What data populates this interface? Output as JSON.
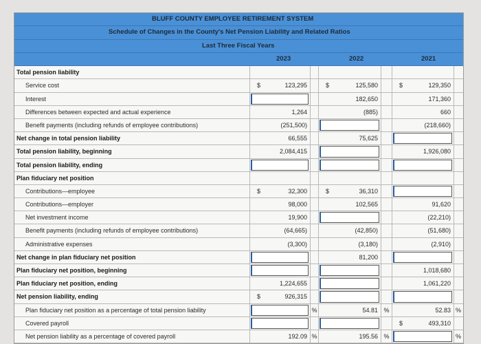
{
  "header": {
    "title": "BLUFF COUNTY EMPLOYEE RETIREMENT SYSTEM",
    "subtitle": "Schedule of Changes in the County's Net Pension Liability and Related Ratios",
    "period": "Last Three Fiscal Years",
    "years": [
      "2023",
      "2022",
      "2021"
    ]
  },
  "colors": {
    "header_blue": "#4a90d6"
  },
  "rows": [
    {
      "label": "Total pension liability",
      "bold": true,
      "section": true
    },
    {
      "label": "Service cost",
      "cells": [
        {
          "value": "123,295",
          "dollar": true
        },
        {
          "value": "125,580",
          "dollar": true
        },
        {
          "value": "129,350",
          "dollar": true
        }
      ]
    },
    {
      "label": "Interest",
      "cells": [
        {
          "input": true
        },
        {
          "value": "182,650"
        },
        {
          "value": "171,360"
        }
      ]
    },
    {
      "label": "Differences between expected and actual experience",
      "cells": [
        {
          "value": "1,264"
        },
        {
          "value": "(885)"
        },
        {
          "value": "660"
        }
      ]
    },
    {
      "label": "Benefit payments (including refunds of employee contributions)",
      "cells": [
        {
          "value": "(251,500)"
        },
        {
          "input": true
        },
        {
          "value": "(218,660)"
        }
      ]
    },
    {
      "label": "Net change in total pension liability",
      "bold": true,
      "cells": [
        {
          "value": "66,555"
        },
        {
          "value": "75,625"
        },
        {
          "input": true
        }
      ]
    },
    {
      "label": "Total pension liability, beginning",
      "bold": true,
      "cells": [
        {
          "value": "2,084,415"
        },
        {
          "input": true
        },
        {
          "value": "1,926,080"
        }
      ]
    },
    {
      "label": "Total pension liability, ending",
      "bold": true,
      "cells": [
        {
          "input": true
        },
        {
          "input": true
        },
        {
          "input": true
        }
      ]
    },
    {
      "label": "Plan fiduciary net position",
      "bold": true,
      "section": true
    },
    {
      "label": "Contributions—employee",
      "cells": [
        {
          "value": "32,300",
          "dollar": true
        },
        {
          "value": "36,310",
          "dollar": true
        },
        {
          "input": true
        }
      ]
    },
    {
      "label": "Contributions—employer",
      "cells": [
        {
          "value": "98,000"
        },
        {
          "value": "102,565"
        },
        {
          "value": "91,620"
        }
      ]
    },
    {
      "label": "Net investment income",
      "cells": [
        {
          "value": "19,900"
        },
        {
          "input": true
        },
        {
          "value": "(22,210)"
        }
      ]
    },
    {
      "label": "Benefit payments (including refunds of employee contributions)",
      "cells": [
        {
          "value": "(64,665)"
        },
        {
          "value": "(42,850)"
        },
        {
          "value": "(51,680)"
        }
      ]
    },
    {
      "label": "Administrative expenses",
      "cells": [
        {
          "value": "(3,300)"
        },
        {
          "value": "(3,180)"
        },
        {
          "value": "(2,910)"
        }
      ]
    },
    {
      "label": "Net change in plan fiduciary net position",
      "bold": true,
      "cells": [
        {
          "input": true
        },
        {
          "value": "81,200"
        },
        {
          "input": true
        }
      ]
    },
    {
      "label": "Plan fiduciary net position, beginning",
      "bold": true,
      "cells": [
        {
          "input": true
        },
        {
          "input": true
        },
        {
          "value": "1,018,680"
        }
      ]
    },
    {
      "label": "Plan fiduciary net position, ending",
      "bold": true,
      "cells": [
        {
          "value": "1,224,655"
        },
        {
          "input": true
        },
        {
          "value": "1,061,220"
        }
      ]
    },
    {
      "label": "Net pension liability, ending",
      "bold": true,
      "cells": [
        {
          "value": "926,315",
          "dollar": true
        },
        {
          "input": true
        },
        {
          "input": true
        }
      ]
    },
    {
      "label": "Plan fiduciary net position as a percentage of total pension liability",
      "cells": [
        {
          "input": true,
          "pct": "%"
        },
        {
          "value": "54.81",
          "pct": "%"
        },
        {
          "value": "52.83",
          "pct": "%"
        }
      ]
    },
    {
      "label": "Covered payroll",
      "cells": [
        {
          "input": true
        },
        {
          "input": true
        },
        {
          "value": "493,310",
          "dollar": true
        }
      ]
    },
    {
      "label": "Net pension liability as a percentage of covered payroll",
      "cells": [
        {
          "value": "192.09",
          "pct": "%"
        },
        {
          "value": "195.56",
          "pct": "%"
        },
        {
          "input": true,
          "pct": "%"
        }
      ]
    }
  ]
}
